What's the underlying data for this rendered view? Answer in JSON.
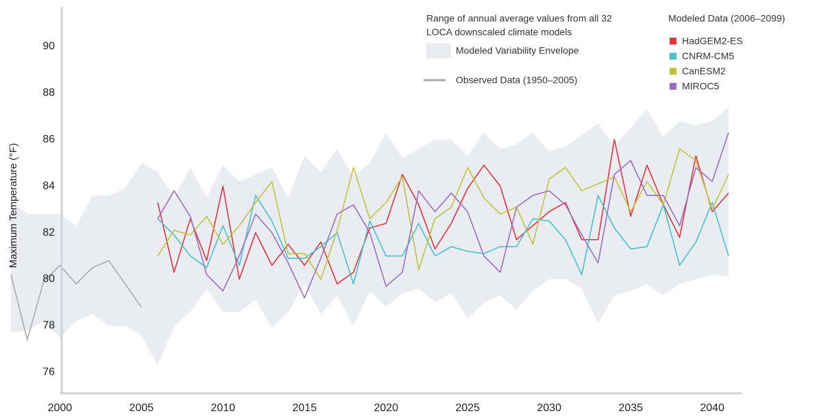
{
  "chart_data": {
    "type": "line",
    "y_label": "Maximum Temperature (°F)",
    "xlim": [
      1997,
      2041.8
    ],
    "ylim": [
      75.1,
      91.7
    ],
    "xticks": [
      2000,
      2005,
      2010,
      2015,
      2020,
      2025,
      2030,
      2035,
      2040
    ],
    "yticks": [
      76,
      78,
      80,
      82,
      84,
      86,
      88,
      90
    ],
    "grid": false,
    "envelope_note": [
      "Range of annual average values from all 32",
      "LOCA downscaled climate models"
    ],
    "envelope": {
      "name": "Modeled Variability Envelope",
      "color": "#e9edf2",
      "x": [
        1997,
        1998,
        1999,
        2000,
        2001,
        2002,
        2003,
        2004,
        2005,
        2006,
        2007,
        2008,
        2009,
        2010,
        2011,
        2012,
        2013,
        2014,
        2015,
        2016,
        2017,
        2018,
        2019,
        2020,
        2021,
        2022,
        2023,
        2024,
        2025,
        2026,
        2027,
        2028,
        2029,
        2030,
        2031,
        2032,
        2033,
        2034,
        2035,
        2036,
        2037,
        2038,
        2039,
        2040,
        2041
      ],
      "upper": [
        83.3,
        82.8,
        82.8,
        82.8,
        82.3,
        83.6,
        83.6,
        83.9,
        85,
        84.6,
        83.5,
        84.8,
        83.5,
        84.9,
        84.2,
        84.5,
        84.8,
        83.5,
        85.3,
        84.6,
        85.6,
        84.4,
        85,
        86.3,
        85.2,
        85.6,
        86,
        86,
        85.3,
        86.3,
        85.6,
        85.8,
        86.3,
        85.5,
        85.7,
        86.2,
        86.7,
        85.7,
        86.5,
        87.3,
        86.1,
        86.8,
        86.6,
        86.8,
        87.4
      ],
      "lower": [
        77.7,
        77.8,
        78.2,
        77.5,
        78.2,
        78.5,
        78,
        78,
        77.6,
        76.3,
        78,
        78.6,
        79.6,
        78.6,
        78.6,
        79.1,
        77.9,
        78.6,
        79.8,
        78.5,
        79.3,
        78,
        79.5,
        78.8,
        79.4,
        79.6,
        79,
        79.4,
        78.3,
        79,
        79.3,
        78.7,
        79.5,
        80,
        80,
        79.6,
        78.1,
        79.3,
        79.5,
        79.8,
        79.3,
        79.8,
        80,
        80.2,
        80.1
      ]
    },
    "observed": {
      "name": "Observed Data (1950–2005)",
      "color": "#aaaaaa",
      "x": [
        1997,
        1998,
        1999,
        2000,
        2001,
        2002,
        2003,
        2004,
        2005
      ],
      "values": [
        80.2,
        77.4,
        79.9,
        80.6,
        79.8,
        80.5,
        80.8,
        79.8,
        78.8
      ]
    },
    "legend_title": "Modeled Data (2006–2099)",
    "x": [
      2006,
      2007,
      2008,
      2009,
      2010,
      2011,
      2012,
      2013,
      2014,
      2015,
      2016,
      2017,
      2018,
      2019,
      2020,
      2021,
      2022,
      2023,
      2024,
      2025,
      2026,
      2027,
      2028,
      2029,
      2030,
      2031,
      2032,
      2033,
      2034,
      2035,
      2036,
      2037,
      2038,
      2039,
      2040,
      2041
    ],
    "series": [
      {
        "name": "HadGEM2-ES",
        "color": "#e0333d",
        "values": [
          83.3,
          80.3,
          82.6,
          80.8,
          84.0,
          80.0,
          82.0,
          80.6,
          81.5,
          80.6,
          81.6,
          79.8,
          80.3,
          82.2,
          82.4,
          84.5,
          83.2,
          81.3,
          82.4,
          83.9,
          84.9,
          84.0,
          81.7,
          82.3,
          82.9,
          83.3,
          81.7,
          81.7,
          86.0,
          82.7,
          84.9,
          83.2,
          81.8,
          85.3,
          82.9,
          83.7
        ]
      },
      {
        "name": "CNRM-CM5",
        "color": "#45c1cf",
        "values": [
          82.6,
          81.9,
          81.0,
          80.5,
          82.3,
          80.6,
          83.6,
          82.5,
          80.9,
          80.9,
          81.4,
          82.0,
          79.8,
          82.5,
          81.0,
          81.0,
          82.4,
          81.0,
          81.4,
          81.2,
          81.1,
          81.4,
          81.4,
          82.6,
          82.5,
          81.7,
          80.2,
          83.6,
          82.2,
          81.3,
          81.4,
          83.2,
          80.6,
          81.6,
          83.3,
          81.0
        ]
      },
      {
        "name": "CanESM2",
        "color": "#c2c23a",
        "values": [
          81.0,
          82.1,
          81.9,
          82.7,
          81.5,
          82.3,
          83.3,
          84.2,
          81.1,
          81.1,
          80.0,
          82.1,
          84.8,
          82.6,
          83.3,
          84.4,
          80.4,
          82.6,
          83.1,
          84.8,
          83.5,
          82.8,
          83.1,
          81.5,
          84.3,
          84.8,
          83.8,
          84.1,
          84.4,
          82.9,
          84.2,
          83.2,
          85.6,
          85.1,
          83.0,
          84.5
        ]
      },
      {
        "name": "MIROC5",
        "color": "#9b6fc0",
        "values": [
          82.6,
          83.8,
          82.7,
          80.2,
          79.5,
          81.0,
          82.8,
          82.0,
          80.7,
          79.2,
          80.9,
          82.8,
          83.2,
          82.0,
          79.7,
          80.3,
          83.8,
          82.9,
          83.7,
          82.9,
          81.0,
          80.3,
          83.1,
          83.6,
          83.8,
          83.2,
          81.9,
          80.7,
          84.5,
          85.1,
          83.6,
          83.6,
          82.3,
          84.8,
          84.2,
          86.3
        ]
      }
    ]
  }
}
